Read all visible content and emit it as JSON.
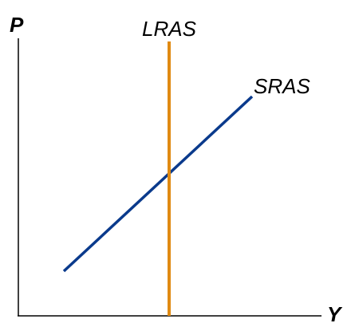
{
  "axes": {
    "y_label": "P",
    "x_label": "Y"
  },
  "curves": {
    "lras": {
      "label": "LRAS",
      "color": "#E08A12"
    },
    "sras": {
      "label": "SRAS",
      "color": "#0A3A8C"
    }
  }
}
